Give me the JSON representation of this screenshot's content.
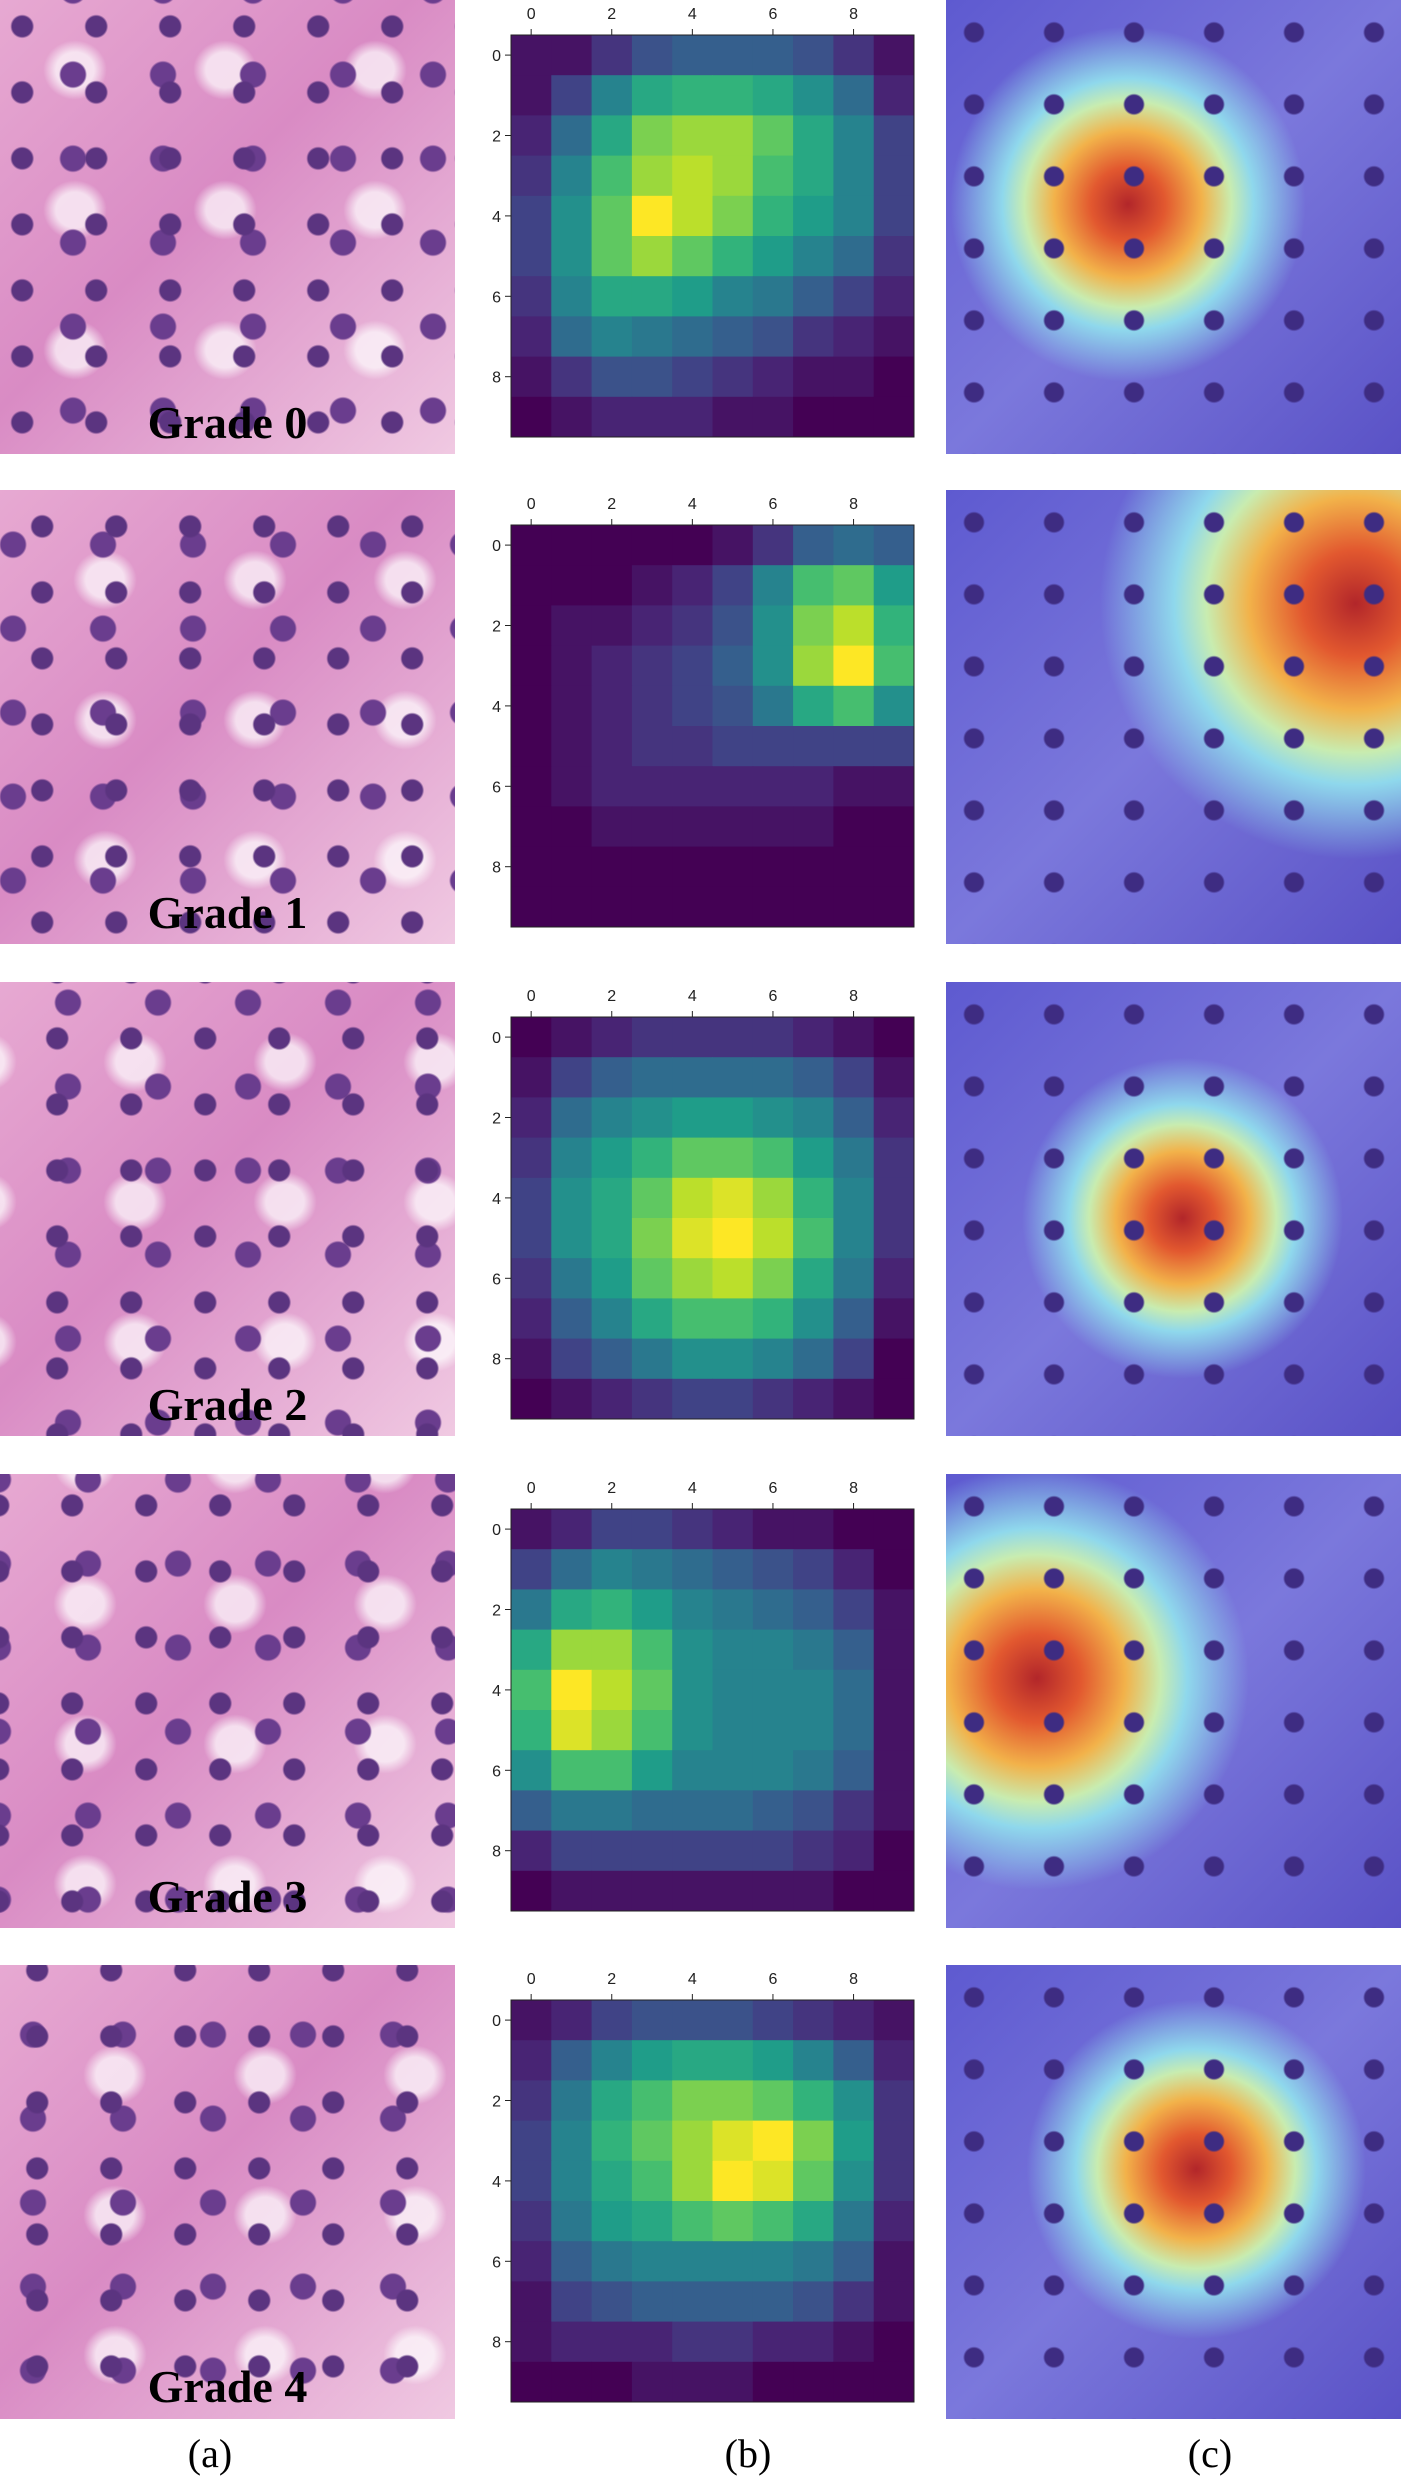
{
  "chart_data": [
    {
      "type": "heatmap",
      "colormap": "viridis",
      "xlim": [
        -0.5,
        9.5
      ],
      "ylim": [
        9.5,
        -0.5
      ],
      "xticks": [
        0,
        2,
        4,
        6,
        8
      ],
      "yticks": [
        0,
        2,
        4,
        6,
        8
      ],
      "values": [
        [
          0.05,
          0.05,
          0.15,
          0.25,
          0.3,
          0.3,
          0.3,
          0.25,
          0.15,
          0.05
        ],
        [
          0.05,
          0.2,
          0.45,
          0.6,
          0.65,
          0.65,
          0.6,
          0.5,
          0.35,
          0.1
        ],
        [
          0.1,
          0.35,
          0.6,
          0.8,
          0.85,
          0.85,
          0.75,
          0.6,
          0.45,
          0.2
        ],
        [
          0.15,
          0.45,
          0.7,
          0.85,
          0.9,
          0.85,
          0.7,
          0.6,
          0.45,
          0.2
        ],
        [
          0.2,
          0.5,
          0.75,
          1.0,
          0.9,
          0.8,
          0.65,
          0.55,
          0.45,
          0.2
        ],
        [
          0.2,
          0.5,
          0.75,
          0.85,
          0.75,
          0.65,
          0.55,
          0.45,
          0.35,
          0.15
        ],
        [
          0.15,
          0.45,
          0.6,
          0.6,
          0.55,
          0.45,
          0.4,
          0.3,
          0.2,
          0.1
        ],
        [
          0.1,
          0.35,
          0.45,
          0.4,
          0.35,
          0.3,
          0.25,
          0.15,
          0.1,
          0.05
        ],
        [
          0.05,
          0.15,
          0.25,
          0.25,
          0.2,
          0.15,
          0.1,
          0.05,
          0.05,
          0.0
        ],
        [
          0.0,
          0.05,
          0.1,
          0.1,
          0.1,
          0.05,
          0.05,
          0.0,
          0.0,
          0.0
        ]
      ]
    },
    {
      "type": "heatmap",
      "colormap": "viridis",
      "xlim": [
        -0.5,
        9.5
      ],
      "ylim": [
        9.5,
        -0.5
      ],
      "xticks": [
        0,
        2,
        4,
        6,
        8
      ],
      "yticks": [
        0,
        2,
        4,
        6,
        8
      ],
      "values": [
        [
          0,
          0,
          0,
          0,
          0,
          0.05,
          0.15,
          0.3,
          0.35,
          0.3
        ],
        [
          0,
          0,
          0,
          0.05,
          0.1,
          0.2,
          0.45,
          0.7,
          0.75,
          0.55
        ],
        [
          0,
          0.05,
          0.05,
          0.1,
          0.15,
          0.25,
          0.5,
          0.8,
          0.9,
          0.65
        ],
        [
          0,
          0.05,
          0.1,
          0.15,
          0.2,
          0.3,
          0.5,
          0.85,
          1.0,
          0.7
        ],
        [
          0,
          0.05,
          0.1,
          0.15,
          0.2,
          0.25,
          0.4,
          0.6,
          0.7,
          0.5
        ],
        [
          0,
          0.05,
          0.1,
          0.15,
          0.15,
          0.2,
          0.2,
          0.2,
          0.2,
          0.2
        ],
        [
          0,
          0.05,
          0.1,
          0.1,
          0.1,
          0.1,
          0.1,
          0.1,
          0.05,
          0.05
        ],
        [
          0,
          0,
          0.05,
          0.05,
          0.05,
          0.05,
          0.05,
          0.05,
          0,
          0
        ],
        [
          0,
          0,
          0,
          0,
          0,
          0,
          0,
          0,
          0,
          0
        ],
        [
          0,
          0,
          0,
          0,
          0,
          0,
          0,
          0,
          0,
          0
        ]
      ]
    },
    {
      "type": "heatmap",
      "colormap": "viridis",
      "xlim": [
        -0.5,
        9.5
      ],
      "ylim": [
        9.5,
        -0.5
      ],
      "xticks": [
        0,
        2,
        4,
        6,
        8
      ],
      "yticks": [
        0,
        2,
        4,
        6,
        8
      ],
      "values": [
        [
          0,
          0.05,
          0.1,
          0.15,
          0.15,
          0.15,
          0.15,
          0.1,
          0.05,
          0
        ],
        [
          0.05,
          0.2,
          0.3,
          0.35,
          0.35,
          0.35,
          0.35,
          0.3,
          0.2,
          0.05
        ],
        [
          0.1,
          0.35,
          0.45,
          0.5,
          0.55,
          0.55,
          0.5,
          0.45,
          0.3,
          0.1
        ],
        [
          0.15,
          0.45,
          0.55,
          0.65,
          0.75,
          0.75,
          0.7,
          0.55,
          0.4,
          0.15
        ],
        [
          0.2,
          0.5,
          0.6,
          0.75,
          0.9,
          0.95,
          0.85,
          0.65,
          0.45,
          0.15
        ],
        [
          0.2,
          0.5,
          0.6,
          0.8,
          0.95,
          1.0,
          0.9,
          0.7,
          0.45,
          0.15
        ],
        [
          0.15,
          0.4,
          0.55,
          0.75,
          0.85,
          0.9,
          0.8,
          0.6,
          0.4,
          0.1
        ],
        [
          0.1,
          0.3,
          0.45,
          0.6,
          0.7,
          0.7,
          0.65,
          0.5,
          0.3,
          0.05
        ],
        [
          0.05,
          0.2,
          0.3,
          0.4,
          0.5,
          0.5,
          0.45,
          0.35,
          0.2,
          0
        ],
        [
          0,
          0.05,
          0.1,
          0.15,
          0.2,
          0.2,
          0.15,
          0.1,
          0.05,
          0
        ]
      ]
    },
    {
      "type": "heatmap",
      "colormap": "viridis",
      "xlim": [
        -0.5,
        9.5
      ],
      "ylim": [
        9.5,
        -0.5
      ],
      "xticks": [
        0,
        2,
        4,
        6,
        8
      ],
      "yticks": [
        0,
        2,
        4,
        6,
        8
      ],
      "values": [
        [
          0.05,
          0.1,
          0.2,
          0.2,
          0.15,
          0.1,
          0.05,
          0.05,
          0,
          0
        ],
        [
          0.2,
          0.35,
          0.45,
          0.4,
          0.35,
          0.3,
          0.25,
          0.2,
          0.1,
          0
        ],
        [
          0.4,
          0.6,
          0.65,
          0.55,
          0.45,
          0.4,
          0.35,
          0.3,
          0.2,
          0.05
        ],
        [
          0.6,
          0.85,
          0.85,
          0.7,
          0.5,
          0.45,
          0.45,
          0.4,
          0.3,
          0.05
        ],
        [
          0.7,
          1.0,
          0.9,
          0.75,
          0.5,
          0.45,
          0.45,
          0.45,
          0.35,
          0.05
        ],
        [
          0.65,
          0.95,
          0.85,
          0.7,
          0.5,
          0.45,
          0.45,
          0.45,
          0.35,
          0.05
        ],
        [
          0.5,
          0.7,
          0.7,
          0.55,
          0.45,
          0.45,
          0.45,
          0.4,
          0.3,
          0.05
        ],
        [
          0.3,
          0.4,
          0.4,
          0.35,
          0.35,
          0.35,
          0.3,
          0.25,
          0.15,
          0.05
        ],
        [
          0.1,
          0.2,
          0.2,
          0.2,
          0.2,
          0.2,
          0.2,
          0.15,
          0.1,
          0
        ],
        [
          0,
          0.05,
          0.05,
          0.05,
          0.05,
          0.05,
          0.05,
          0.05,
          0,
          0
        ]
      ]
    },
    {
      "type": "heatmap",
      "colormap": "viridis",
      "xlim": [
        -0.5,
        9.5
      ],
      "ylim": [
        9.5,
        -0.5
      ],
      "xticks": [
        0,
        2,
        4,
        6,
        8
      ],
      "yticks": [
        0,
        2,
        4,
        6,
        8
      ],
      "values": [
        [
          0.05,
          0.1,
          0.2,
          0.25,
          0.25,
          0.25,
          0.2,
          0.15,
          0.1,
          0.05
        ],
        [
          0.1,
          0.3,
          0.45,
          0.55,
          0.6,
          0.6,
          0.55,
          0.45,
          0.3,
          0.1
        ],
        [
          0.15,
          0.4,
          0.6,
          0.7,
          0.8,
          0.8,
          0.75,
          0.65,
          0.5,
          0.15
        ],
        [
          0.2,
          0.45,
          0.65,
          0.75,
          0.85,
          0.95,
          1.0,
          0.8,
          0.55,
          0.15
        ],
        [
          0.2,
          0.45,
          0.6,
          0.7,
          0.85,
          1.0,
          0.95,
          0.75,
          0.5,
          0.15
        ],
        [
          0.15,
          0.4,
          0.55,
          0.6,
          0.7,
          0.75,
          0.7,
          0.6,
          0.4,
          0.1
        ],
        [
          0.1,
          0.3,
          0.4,
          0.45,
          0.45,
          0.45,
          0.45,
          0.4,
          0.3,
          0.05
        ],
        [
          0.05,
          0.2,
          0.25,
          0.3,
          0.3,
          0.3,
          0.3,
          0.25,
          0.15,
          0.05
        ],
        [
          0.05,
          0.1,
          0.1,
          0.1,
          0.15,
          0.15,
          0.1,
          0.1,
          0.05,
          0
        ],
        [
          0,
          0,
          0,
          0.05,
          0.05,
          0.05,
          0,
          0,
          0,
          0
        ]
      ]
    }
  ],
  "grades": [
    "Grade 0",
    "Grade 1",
    "Grade 2",
    "Grade 3",
    "Grade 4"
  ],
  "captions": [
    "(a)",
    "(b)",
    "(c)"
  ]
}
